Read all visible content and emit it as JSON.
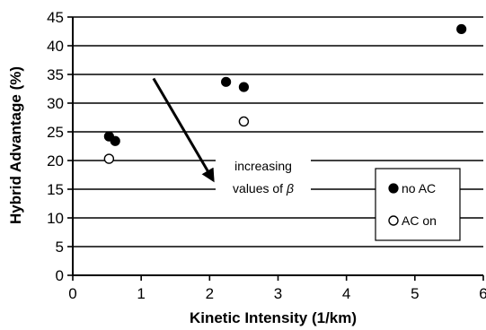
{
  "chart_data": {
    "type": "scatter",
    "xlabel": "Kinetic Intensity (1/km)",
    "ylabel": "Hybrid Advantage (%)",
    "xlim": [
      0,
      6
    ],
    "ylim": [
      0,
      45
    ],
    "x_ticks": [
      0,
      1,
      2,
      3,
      4,
      5,
      6
    ],
    "y_ticks": [
      0,
      5,
      10,
      15,
      20,
      25,
      30,
      35,
      40,
      45
    ],
    "grid": "horizontal",
    "legend_position": "lower-right",
    "series": [
      {
        "name": "no AC",
        "marker": "filled-circle",
        "color": "#000000",
        "points": [
          {
            "x": 0.53,
            "y": 24.2
          },
          {
            "x": 0.62,
            "y": 23.4
          },
          {
            "x": 2.24,
            "y": 33.7
          },
          {
            "x": 2.5,
            "y": 32.8
          },
          {
            "x": 5.68,
            "y": 42.9
          }
        ]
      },
      {
        "name": "AC on",
        "marker": "open-circle",
        "color": "#000000",
        "points": [
          {
            "x": 0.53,
            "y": 20.3
          },
          {
            "x": 2.5,
            "y": 26.8
          }
        ]
      }
    ],
    "annotation": {
      "text_line1": "increasing",
      "text_line2_prefix": "values of ",
      "text_line2_symbol": "β",
      "arrow_from": {
        "x": 1.18,
        "y": 34.3
      },
      "arrow_to": {
        "x": 2.05,
        "y": 16.6
      }
    }
  }
}
